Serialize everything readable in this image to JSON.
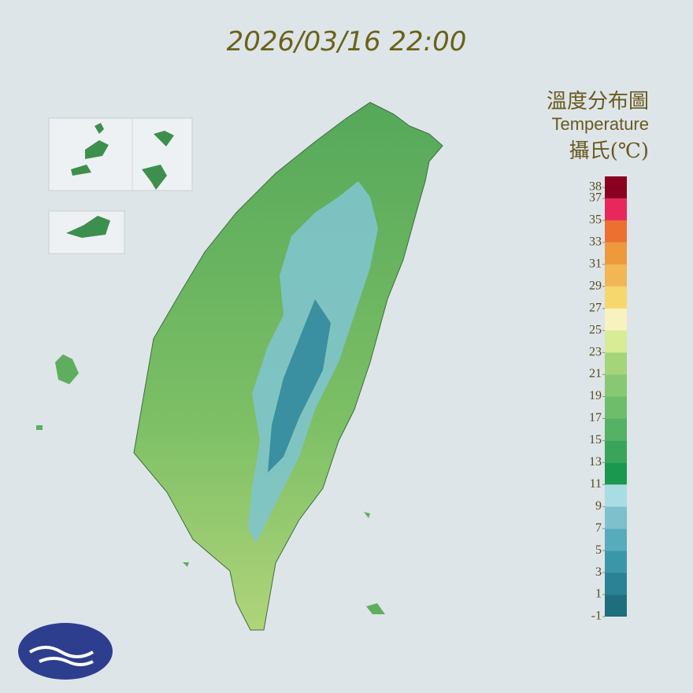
{
  "timestamp": "2026/03/16 22:00",
  "legend": {
    "title": "溫度分布圖",
    "subtitle": "Temperature",
    "unit": "攝氏(℃)",
    "lim": [
      -1,
      39
    ],
    "ticks": [
      38,
      37,
      35,
      33,
      31,
      29,
      27,
      25,
      23,
      21,
      19,
      17,
      15,
      13,
      11,
      9,
      7,
      5,
      3,
      1,
      -1
    ],
    "bins": [
      -1,
      1,
      3,
      5,
      7,
      9,
      11,
      13,
      15,
      17,
      19,
      21,
      23,
      25,
      27,
      29,
      31,
      33,
      35,
      37,
      39
    ],
    "colors": [
      "#1e6e7e",
      "#2a8294",
      "#3a97a8",
      "#58abbb",
      "#7ec1cc",
      "#a8dde3",
      "#1a9850",
      "#3aa45a",
      "#55b163",
      "#6dbd6b",
      "#88c872",
      "#a6d478",
      "#d8ec96",
      "#f7f2c0",
      "#f5d76e",
      "#f2b655",
      "#ee9a3a",
      "#ec7030",
      "#e8285c",
      "#8b0020",
      "#9b59b6"
    ]
  }
}
